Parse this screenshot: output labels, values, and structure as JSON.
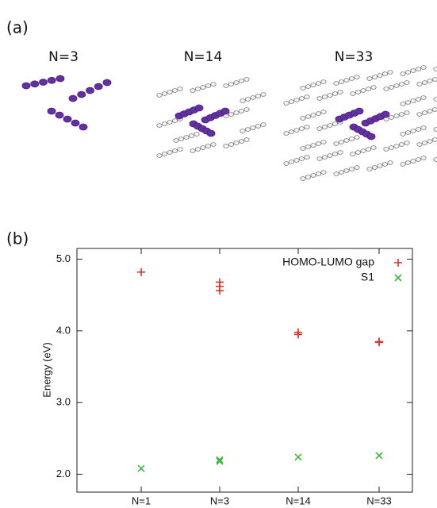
{
  "panels": {
    "a": {
      "label": "(a)",
      "clusters": [
        "N=3",
        "N=14",
        "N=33"
      ]
    },
    "b": {
      "label": "(b)"
    }
  },
  "chart_data": {
    "type": "scatter",
    "ylabel": "Energy (eV)",
    "categories": [
      "N=1",
      "N=3",
      "N=14",
      "N=33"
    ],
    "ylim": [
      1.75,
      5.15
    ],
    "yticks": [
      {
        "value": 2,
        "label": "2.0"
      },
      {
        "value": 3,
        "label": "3.0"
      },
      {
        "value": 4,
        "label": "4.0"
      },
      {
        "value": 5,
        "label": "5.0"
      }
    ],
    "legend": "upper right",
    "series": [
      {
        "name": "HOMO-LUMO gap",
        "color": "#e8302a",
        "marker": "plus",
        "x": [
          "N=1",
          "N=3",
          "N=3",
          "N=3",
          "N=14",
          "N=14",
          "N=33",
          "N=33"
        ],
        "values": [
          4.82,
          4.68,
          4.62,
          4.56,
          3.98,
          3.95,
          3.85,
          3.84
        ]
      },
      {
        "name": "S1",
        "color": "#3cb83c",
        "marker": "cross",
        "x": [
          "N=1",
          "N=3",
          "N=3",
          "N=14",
          "N=33"
        ],
        "values": [
          2.08,
          2.2,
          2.18,
          2.24,
          2.26
        ]
      }
    ]
  }
}
